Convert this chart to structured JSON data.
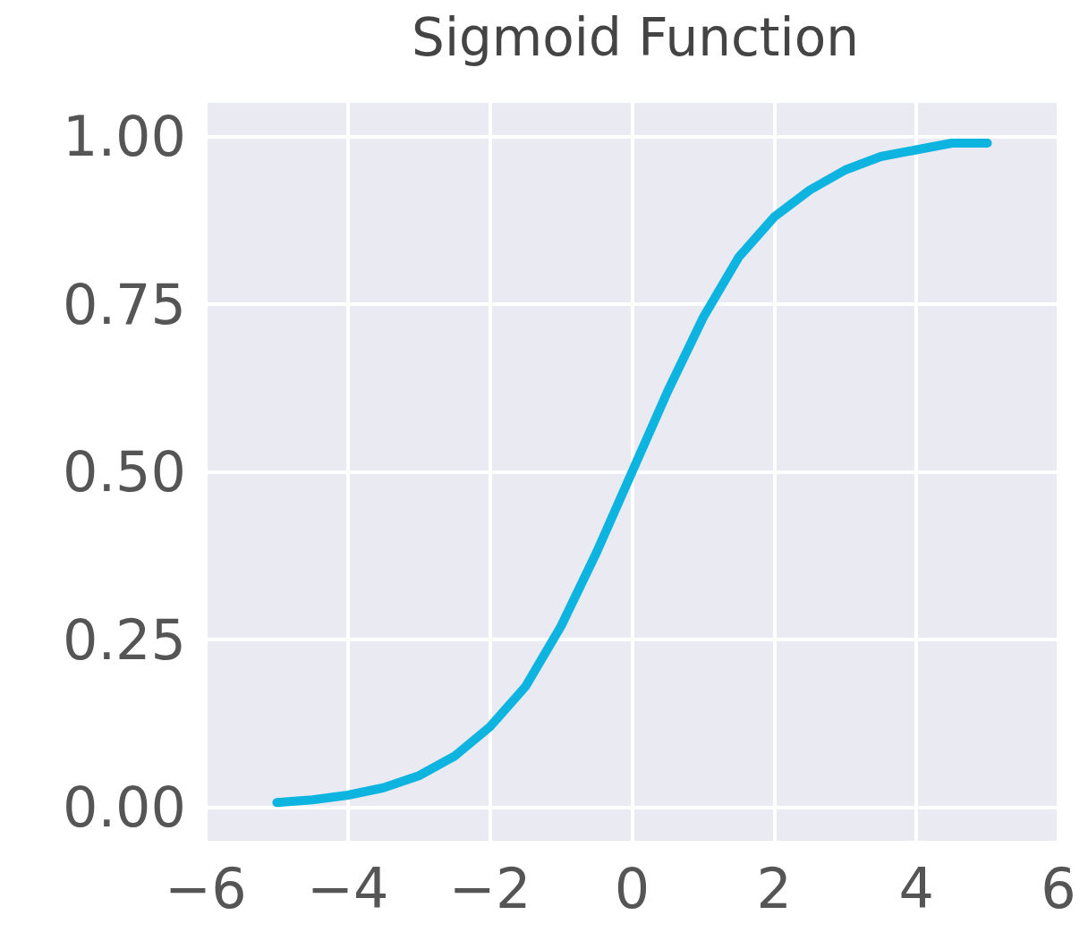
{
  "chart_data": {
    "type": "line",
    "title": "Sigmoid Function",
    "x": [
      -5,
      -4.5,
      -4,
      -3.5,
      -3,
      -2.5,
      -2,
      -1.5,
      -1,
      -0.5,
      0,
      0.5,
      1,
      1.5,
      2,
      2.5,
      3,
      3.5,
      4,
      4.5,
      5
    ],
    "series": [
      {
        "color": "#0db4e0",
        "values": [
          0.007,
          0.011,
          0.018,
          0.029,
          0.047,
          0.076,
          0.12,
          0.18,
          0.27,
          0.38,
          0.5,
          0.62,
          0.73,
          0.82,
          0.88,
          0.92,
          0.95,
          0.97,
          0.98,
          0.99,
          0.99
        ]
      }
    ],
    "xlim": [
      -6,
      6
    ],
    "xticks": [
      {
        "value": -6,
        "label": "−6"
      },
      {
        "value": -4,
        "label": "−4"
      },
      {
        "value": -2,
        "label": "−2"
      },
      0,
      2,
      4,
      6
    ],
    "ylim": [
      -0.05,
      1.05
    ],
    "yticks": [
      {
        "value": 0,
        "label": "0.00"
      },
      {
        "value": 0.25,
        "label": "0.25"
      },
      {
        "value": 0.5,
        "label": "0.50"
      },
      {
        "value": 0.75,
        "label": "0.75"
      },
      {
        "value": 1,
        "label": "1.00"
      }
    ],
    "grid": true,
    "marker": "none",
    "line_style": "solid"
  }
}
